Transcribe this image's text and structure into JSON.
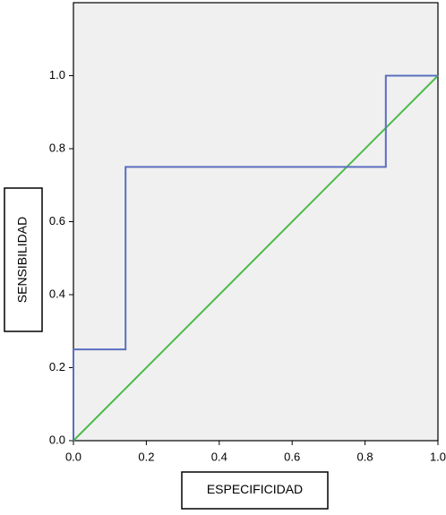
{
  "chart_data": {
    "type": "line",
    "x_label": "ESPECIFICIDAD",
    "y_label": "SENSIBILIDAD",
    "xlim": [
      0,
      1
    ],
    "ylim": [
      0,
      1.2
    ],
    "xticks": [
      {
        "value": 0,
        "label": "0.0"
      },
      {
        "value": 0.2,
        "label": "0.2"
      },
      {
        "value": 0.4,
        "label": "0.4"
      },
      {
        "value": 0.6,
        "label": "0.6"
      },
      {
        "value": 0.8,
        "label": "0.8"
      },
      {
        "value": 1,
        "label": "1.0"
      }
    ],
    "yticks": [
      {
        "value": 0,
        "label": "0.0"
      },
      {
        "value": 0.2,
        "label": "0.2"
      },
      {
        "value": 0.4,
        "label": "0.4"
      },
      {
        "value": 0.6,
        "label": "0.6"
      },
      {
        "value": 0.8,
        "label": "0.8"
      },
      {
        "value": 1,
        "label": "1.0"
      }
    ],
    "background": "#f0f0f0",
    "series": [
      {
        "color": "#5a6fbf",
        "x": [
          0,
          0,
          0.143,
          0.143,
          0.857,
          0.857,
          1
        ],
        "values": [
          0,
          0.25,
          0.25,
          0.75,
          0.75,
          1,
          1
        ]
      },
      {
        "color": "#4cbb4c",
        "x": [
          0,
          1
        ],
        "values": [
          0,
          1
        ]
      }
    ]
  }
}
